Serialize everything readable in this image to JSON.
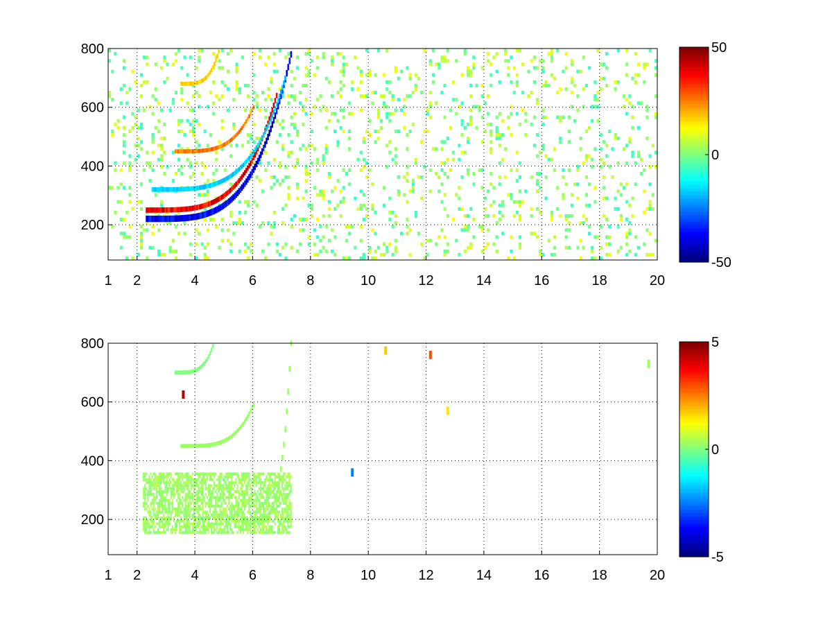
{
  "chart_data": [
    {
      "type": "heatmap",
      "title": "",
      "xlabel": "",
      "ylabel": "",
      "xlim": [
        1,
        20
      ],
      "ylim": [
        80,
        800
      ],
      "xticks": [
        "1",
        "2",
        "4",
        "6",
        "8",
        "10",
        "12",
        "14",
        "16",
        "18",
        "20"
      ],
      "yticks": [
        "200",
        "400",
        "600",
        "800"
      ],
      "grid": true,
      "colormap": "jet",
      "colorbar": {
        "min": -50,
        "max": 50,
        "ticks": [
          "50",
          "0",
          "-50"
        ]
      },
      "features": [
        {
          "kind": "arc",
          "x": [
            2.3,
            7.3
          ],
          "y_start": 220,
          "y_end": 780,
          "value": -45,
          "width": 22
        },
        {
          "kind": "arc",
          "x": [
            2.3,
            6.8
          ],
          "y_start": 250,
          "y_end": 640,
          "value": 45,
          "width": 18
        },
        {
          "kind": "arc",
          "x": [
            2.5,
            7.1
          ],
          "y_start": 320,
          "y_end": 700,
          "value": -20,
          "width": 16
        },
        {
          "kind": "arc",
          "x": [
            3.3,
            6.0
          ],
          "y_start": 450,
          "y_end": 600,
          "value": 30,
          "width": 14
        },
        {
          "kind": "arc",
          "x": [
            3.5,
            4.8
          ],
          "y_start": 680,
          "y_end": 790,
          "value": 20,
          "width": 14
        }
      ],
      "background_noise": {
        "x_range": [
          1,
          20
        ],
        "value_range": [
          -8,
          12
        ],
        "density": 0.12
      }
    },
    {
      "type": "heatmap",
      "title": "",
      "xlabel": "",
      "ylabel": "",
      "xlim": [
        1,
        20
      ],
      "ylim": [
        80,
        800
      ],
      "xticks": [
        "1",
        "2",
        "4",
        "6",
        "8",
        "10",
        "12",
        "14",
        "16",
        "18",
        "20"
      ],
      "yticks": [
        "200",
        "400",
        "600",
        "800"
      ],
      "grid": true,
      "colormap": "jet",
      "colorbar": {
        "min": -5,
        "max": 5,
        "ticks": [
          "5",
          "0",
          "-5"
        ]
      },
      "features": [
        {
          "kind": "blob",
          "x": [
            2.2,
            7.3
          ],
          "y": [
            150,
            350
          ],
          "value": 0.3
        },
        {
          "kind": "arc",
          "x": [
            6.0,
            7.3
          ],
          "y_start": 200,
          "y_end": 800,
          "value": 0.3,
          "width": 20
        },
        {
          "kind": "arc",
          "x": [
            3.5,
            6.0
          ],
          "y_start": 450,
          "y_end": 590,
          "value": 0.3,
          "width": 14
        },
        {
          "kind": "arc",
          "x": [
            3.3,
            4.6
          ],
          "y_start": 700,
          "y_end": 790,
          "value": 0.0,
          "width": 14
        }
      ],
      "spots": [
        {
          "x": 9.45,
          "y": 360,
          "value": -2.5
        },
        {
          "x": 12.75,
          "y": 570,
          "value": 1.5
        },
        {
          "x": 10.6,
          "y": 775,
          "value": 1.8
        },
        {
          "x": 12.15,
          "y": 760,
          "value": 3.0
        },
        {
          "x": 3.6,
          "y": 625,
          "value": 4.5
        },
        {
          "x": 19.7,
          "y": 730,
          "value": 0.3
        }
      ]
    }
  ]
}
